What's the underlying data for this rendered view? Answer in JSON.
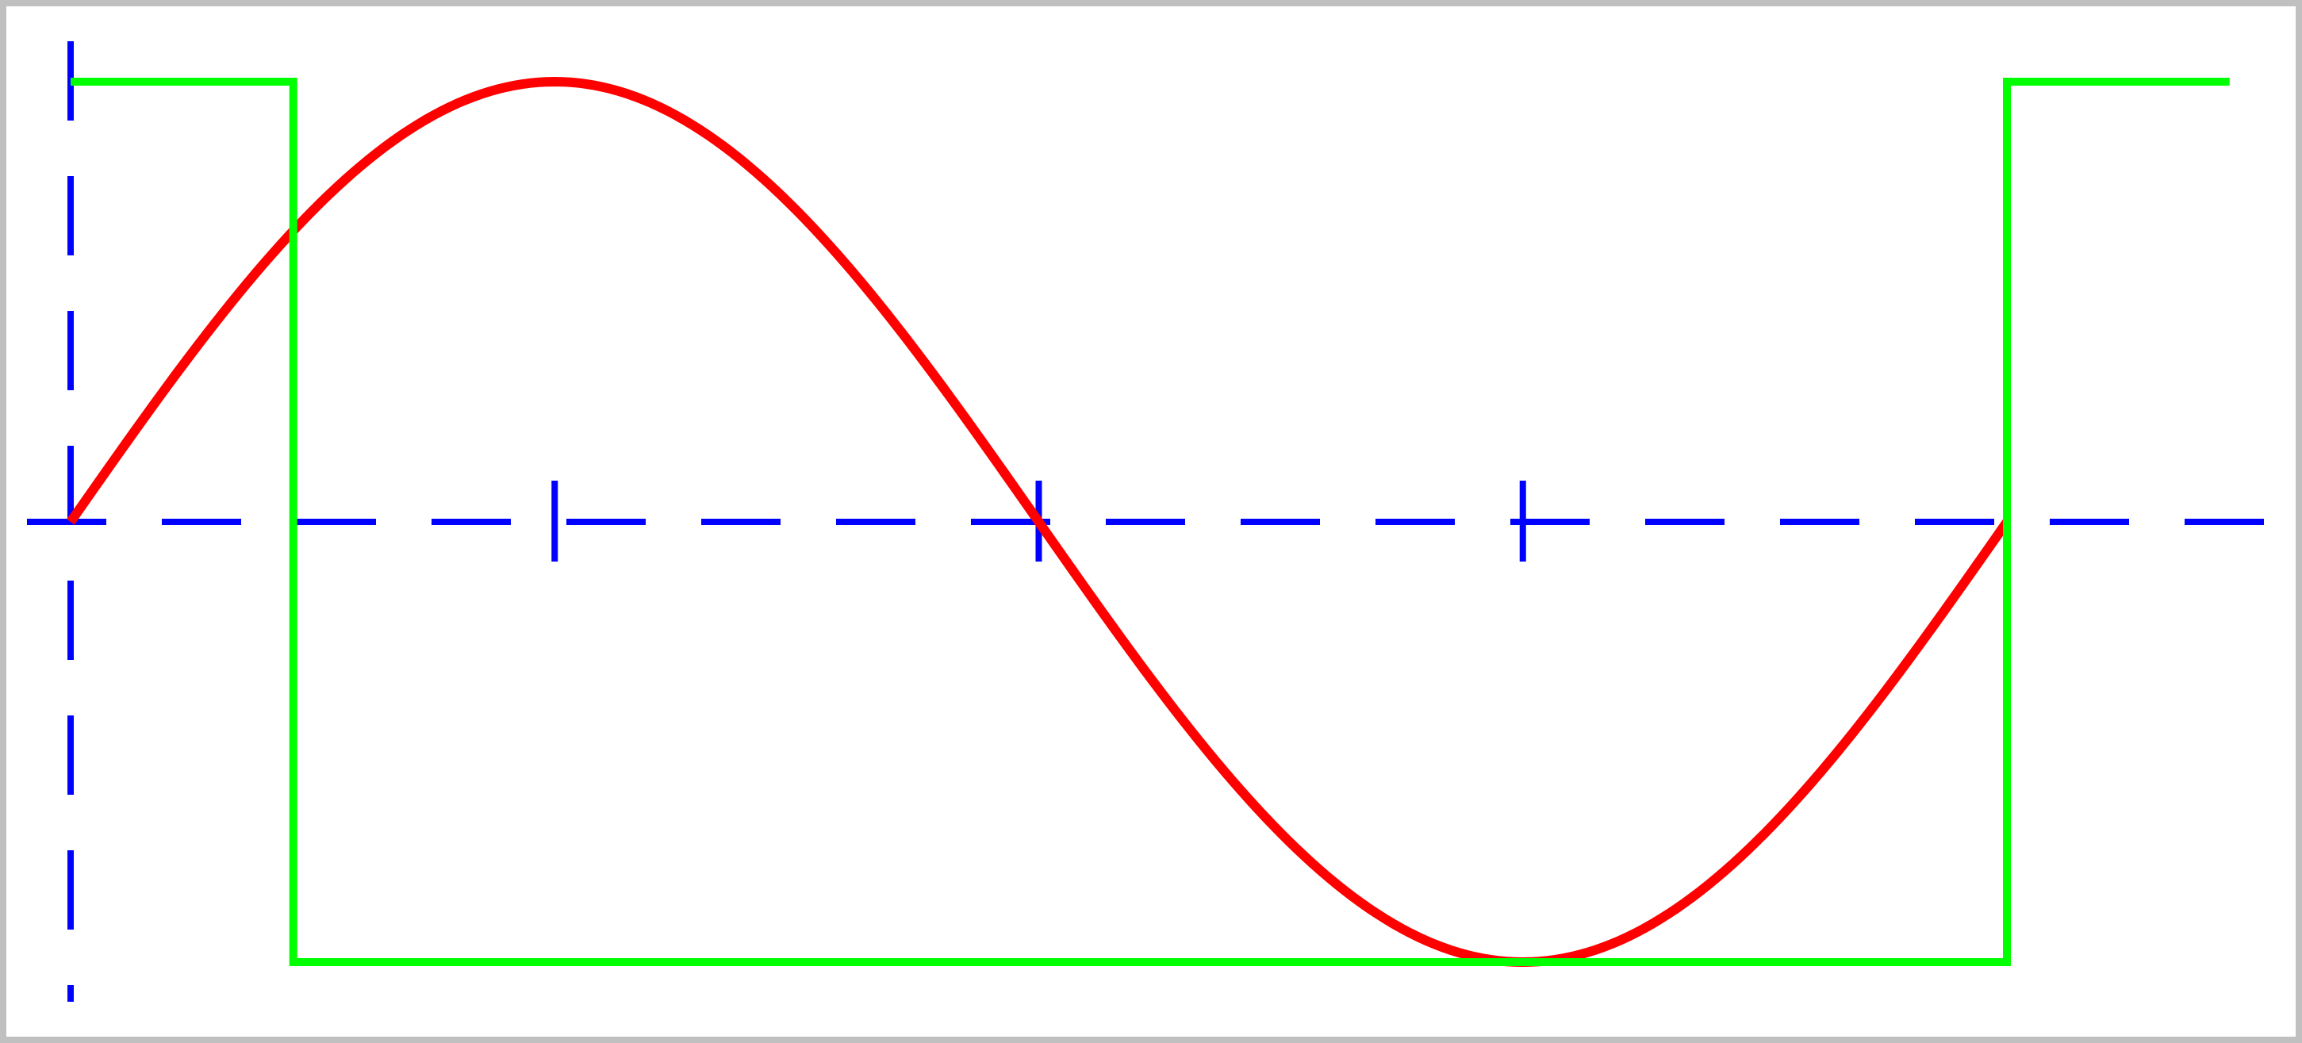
{
  "diagram": {
    "colors": {
      "frame": "#c0c0c0",
      "axes": "#0000ff",
      "square_wave": "#00ff00",
      "sine_wave": "#ff0000"
    }
  },
  "chart_data": {
    "type": "line",
    "grid": false,
    "legend": "none",
    "xlim": [
      -0.05,
      2.05
    ],
    "ylim": [
      -1.05,
      1.05
    ],
    "x_ticks": [
      0.5,
      1,
      1.5,
      2
    ],
    "series": [
      {
        "role": "sine",
        "color": "#ff0000",
        "x": [
          0,
          0.5,
          1,
          1.5,
          2
        ],
        "y": [
          0,
          1,
          0,
          -1,
          0
        ]
      },
      {
        "role": "square",
        "color": "#00ff00",
        "x": [
          0,
          0.23,
          0.23,
          2,
          2,
          2.23
        ],
        "y": [
          1,
          1,
          -1,
          -1,
          1,
          1
        ]
      }
    ]
  }
}
